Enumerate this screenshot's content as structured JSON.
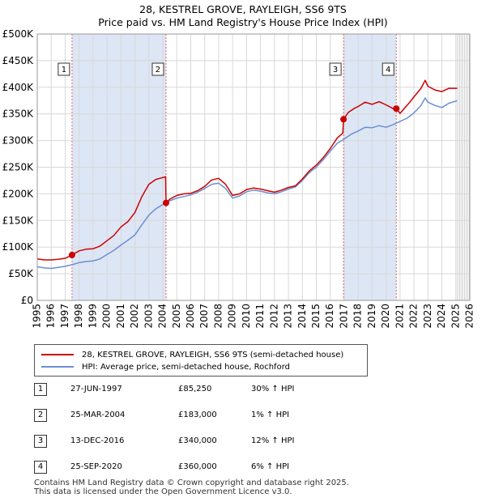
{
  "title": {
    "line1": "28, KESTREL GROVE, RAYLEIGH, SS6 9TS",
    "line2": "Price paid vs. HM Land Registry's House Price Index (HPI)"
  },
  "colors": {
    "property": "#cc0000",
    "hpi": "#6b8fd1",
    "shade": "#dde6f5",
    "grid": "#d8d8d8"
  },
  "legend": {
    "property_label": "28, KESTREL GROVE, RAYLEIGH, SS6 9TS (semi-detached house)",
    "hpi_label": "HPI: Average price, semi-detached house, Rochford"
  },
  "sales": [
    {
      "num": "1",
      "date": "27-JUN-1997",
      "price": "£85,250",
      "hpi": "30% ↑ HPI"
    },
    {
      "num": "2",
      "date": "25-MAR-2004",
      "price": "£183,000",
      "hpi": "1% ↑ HPI"
    },
    {
      "num": "3",
      "date": "13-DEC-2016",
      "price": "£340,000",
      "hpi": "12% ↑ HPI"
    },
    {
      "num": "4",
      "date": "25-SEP-2020",
      "price": "£360,000",
      "hpi": "6% ↑ HPI"
    }
  ],
  "footer": {
    "line1": "Contains HM Land Registry data © Crown copyright and database right 2025.",
    "line2": "This data is licensed under the Open Government Licence v3.0."
  },
  "chart_data": {
    "type": "line",
    "title": "28, KESTREL GROVE, RAYLEIGH, SS6 9TS — Price paid vs. HM Land Registry's House Price Index (HPI)",
    "xlim": [
      1995,
      2026
    ],
    "ylim": [
      0,
      500000
    ],
    "x_ticks": [
      1995,
      1996,
      1997,
      1998,
      1999,
      2000,
      2001,
      2002,
      2003,
      2004,
      2005,
      2006,
      2007,
      2008,
      2009,
      2010,
      2011,
      2012,
      2013,
      2014,
      2015,
      2016,
      2017,
      2018,
      2019,
      2020,
      2021,
      2022,
      2023,
      2024,
      2025,
      2026
    ],
    "y_ticks": [
      {
        "value": 0,
        "label": "£0"
      },
      {
        "value": 50000,
        "label": "£50K"
      },
      {
        "value": 100000,
        "label": "£100K"
      },
      {
        "value": 150000,
        "label": "£150K"
      },
      {
        "value": 200000,
        "label": "£200K"
      },
      {
        "value": 250000,
        "label": "£250K"
      },
      {
        "value": 300000,
        "label": "£300K"
      },
      {
        "value": 350000,
        "label": "£350K"
      },
      {
        "value": 400000,
        "label": "£400K"
      },
      {
        "value": 450000,
        "label": "£450K"
      },
      {
        "value": 500000,
        "label": "£500K"
      }
    ],
    "shaded_periods": [
      [
        1997.49,
        2004.23
      ],
      [
        2016.95,
        2020.73
      ]
    ],
    "projection_start": 2025.1,
    "markers": [
      {
        "label": "1",
        "x": 1997.49,
        "y": 85250
      },
      {
        "label": "2",
        "x": 2004.23,
        "y": 183000
      },
      {
        "label": "3",
        "x": 2016.95,
        "y": 340000
      },
      {
        "label": "4",
        "x": 2020.73,
        "y": 360000
      }
    ],
    "series": [
      {
        "name": "28, KESTREL GROVE, RAYLEIGH, SS6 9TS (semi-detached house)",
        "color": "#cc0000",
        "points": [
          [
            1995,
            78000
          ],
          [
            1995.5,
            76000
          ],
          [
            1996,
            76000
          ],
          [
            1996.5,
            77000
          ],
          [
            1997,
            79000
          ],
          [
            1997.49,
            85250
          ],
          [
            1998,
            93000
          ],
          [
            1998.5,
            96000
          ],
          [
            1999,
            97000
          ],
          [
            1999.5,
            102000
          ],
          [
            2000,
            112000
          ],
          [
            2000.5,
            122000
          ],
          [
            2001,
            138000
          ],
          [
            2001.5,
            148000
          ],
          [
            2002,
            165000
          ],
          [
            2002.5,
            195000
          ],
          [
            2003,
            218000
          ],
          [
            2003.5,
            227000
          ],
          [
            2004.2,
            232000
          ],
          [
            2004.23,
            183000
          ],
          [
            2004.5,
            190000
          ],
          [
            2005,
            197000
          ],
          [
            2005.5,
            200000
          ],
          [
            2006,
            201000
          ],
          [
            2006.5,
            206000
          ],
          [
            2007,
            214000
          ],
          [
            2007.5,
            226000
          ],
          [
            2008,
            229000
          ],
          [
            2008.5,
            218000
          ],
          [
            2009,
            197000
          ],
          [
            2009.5,
            200000
          ],
          [
            2010,
            208000
          ],
          [
            2010.5,
            211000
          ],
          [
            2011,
            209000
          ],
          [
            2011.5,
            206000
          ],
          [
            2012,
            203000
          ],
          [
            2012.5,
            207000
          ],
          [
            2013,
            212000
          ],
          [
            2013.5,
            215000
          ],
          [
            2014,
            228000
          ],
          [
            2014.5,
            243000
          ],
          [
            2015,
            254000
          ],
          [
            2015.5,
            268000
          ],
          [
            2016,
            285000
          ],
          [
            2016.5,
            305000
          ],
          [
            2016.9,
            314000
          ],
          [
            2016.95,
            340000
          ],
          [
            2017.3,
            353000
          ],
          [
            2017.7,
            360000
          ],
          [
            2018,
            364000
          ],
          [
            2018.5,
            372000
          ],
          [
            2019,
            368000
          ],
          [
            2019.5,
            373000
          ],
          [
            2020,
            367000
          ],
          [
            2020.5,
            360000
          ],
          [
            2020.73,
            360000
          ],
          [
            2021,
            351000
          ],
          [
            2021.3,
            360000
          ],
          [
            2021.7,
            372000
          ],
          [
            2022,
            382000
          ],
          [
            2022.5,
            398000
          ],
          [
            2022.8,
            413000
          ],
          [
            2023,
            402000
          ],
          [
            2023.5,
            395000
          ],
          [
            2024,
            392000
          ],
          [
            2024.5,
            398000
          ],
          [
            2025,
            398000
          ],
          [
            2025.1,
            398000
          ]
        ]
      },
      {
        "name": "HPI: Average price, semi-detached house, Rochford",
        "color": "#6b8fd1",
        "points": [
          [
            1995,
            63000
          ],
          [
            1995.5,
            61000
          ],
          [
            1996,
            60000
          ],
          [
            1996.5,
            62000
          ],
          [
            1997,
            64000
          ],
          [
            1997.5,
            67000
          ],
          [
            1998,
            71000
          ],
          [
            1998.5,
            73000
          ],
          [
            1999,
            74000
          ],
          [
            1999.5,
            78000
          ],
          [
            2000,
            86000
          ],
          [
            2000.5,
            94000
          ],
          [
            2001,
            104000
          ],
          [
            2001.5,
            113000
          ],
          [
            2002,
            123000
          ],
          [
            2002.5,
            142000
          ],
          [
            2003,
            160000
          ],
          [
            2003.5,
            172000
          ],
          [
            2004,
            180000
          ],
          [
            2004.5,
            187000
          ],
          [
            2005,
            192000
          ],
          [
            2005.5,
            195000
          ],
          [
            2006,
            198000
          ],
          [
            2006.5,
            203000
          ],
          [
            2007,
            210000
          ],
          [
            2007.5,
            218000
          ],
          [
            2008,
            220000
          ],
          [
            2008.5,
            210000
          ],
          [
            2009,
            192000
          ],
          [
            2009.5,
            196000
          ],
          [
            2010,
            204000
          ],
          [
            2010.5,
            207000
          ],
          [
            2011,
            205000
          ],
          [
            2011.5,
            202000
          ],
          [
            2012,
            200000
          ],
          [
            2012.5,
            204000
          ],
          [
            2013,
            209000
          ],
          [
            2013.5,
            213000
          ],
          [
            2014,
            225000
          ],
          [
            2014.5,
            240000
          ],
          [
            2015,
            250000
          ],
          [
            2015.5,
            264000
          ],
          [
            2016,
            280000
          ],
          [
            2016.5,
            295000
          ],
          [
            2017,
            303000
          ],
          [
            2017.5,
            312000
          ],
          [
            2018,
            318000
          ],
          [
            2018.5,
            325000
          ],
          [
            2019,
            324000
          ],
          [
            2019.5,
            328000
          ],
          [
            2020,
            325000
          ],
          [
            2020.5,
            330000
          ],
          [
            2021,
            336000
          ],
          [
            2021.5,
            342000
          ],
          [
            2022,
            352000
          ],
          [
            2022.5,
            366000
          ],
          [
            2022.8,
            380000
          ],
          [
            2023,
            372000
          ],
          [
            2023.5,
            366000
          ],
          [
            2024,
            362000
          ],
          [
            2024.5,
            370000
          ],
          [
            2025,
            374000
          ],
          [
            2025.1,
            375000
          ]
        ]
      }
    ]
  }
}
